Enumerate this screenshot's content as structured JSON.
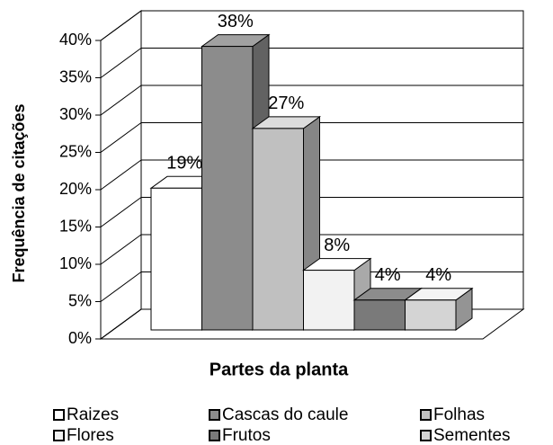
{
  "chart_data": {
    "type": "bar3d",
    "y_axis_label": "Frequência de citações",
    "x_axis_label": "Partes da planta",
    "ylim": [
      0,
      40
    ],
    "yticks": [
      {
        "value": 0,
        "label": "0%"
      },
      {
        "value": 5,
        "label": "5%"
      },
      {
        "value": 10,
        "label": "10%"
      },
      {
        "value": 15,
        "label": "15%"
      },
      {
        "value": 20,
        "label": "20%"
      },
      {
        "value": 25,
        "label": "25%"
      },
      {
        "value": 30,
        "label": "30%"
      },
      {
        "value": 35,
        "label": "35%"
      },
      {
        "value": 40,
        "label": "40%"
      }
    ],
    "grid": true,
    "legend": "bottom",
    "series": [
      {
        "name": "Raizes",
        "color": "#ffffff",
        "values": [
          19
        ],
        "value_labels": [
          "19%"
        ]
      },
      {
        "name": "Cascas do caule",
        "color": "#8c8c8c",
        "values": [
          38
        ],
        "value_labels": [
          "38%"
        ]
      },
      {
        "name": "Folhas",
        "color": "#c0c0c0",
        "values": [
          27
        ],
        "value_labels": [
          "27%"
        ]
      },
      {
        "name": "Flores",
        "color": "#f2f2f2",
        "values": [
          8
        ],
        "value_labels": [
          "8%"
        ]
      },
      {
        "name": "Frutos",
        "color": "#7a7a7a",
        "values": [
          4
        ],
        "value_labels": [
          "4%"
        ]
      },
      {
        "name": "Sementes",
        "color": "#d4d4d4",
        "values": [
          4
        ],
        "value_labels": [
          "4%"
        ]
      }
    ]
  }
}
